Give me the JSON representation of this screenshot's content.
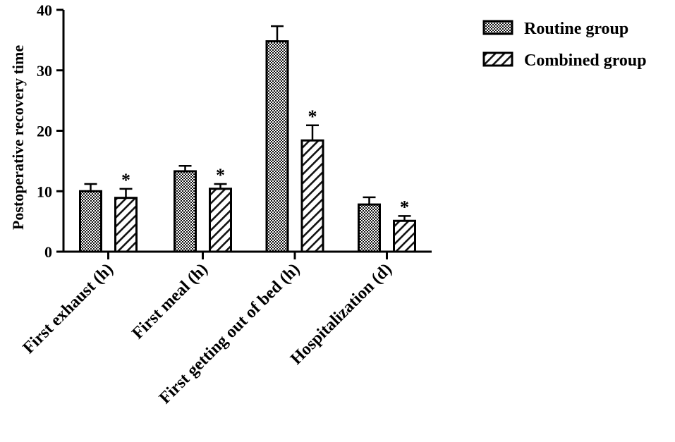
{
  "chart_data": {
    "type": "bar",
    "title": "",
    "xlabel": "",
    "ylabel": "Postoperative recovery time",
    "ylim": [
      0,
      40
    ],
    "yticks": [
      0,
      10,
      20,
      30,
      40
    ],
    "grid": false,
    "legend_position": "top-right",
    "categories": [
      "First exhaust (h)",
      "First meal (h)",
      "First getting out of bed (h)",
      "Hospitalization (d)"
    ],
    "series": [
      {
        "name": "Routine group",
        "pattern": "checkered",
        "values": [
          10.0,
          13.3,
          34.8,
          7.8
        ],
        "error": [
          1.2,
          0.9,
          2.5,
          1.2
        ],
        "annotations": [
          "",
          "",
          "",
          ""
        ]
      },
      {
        "name": "Combined group",
        "pattern": "hatched",
        "values": [
          8.9,
          10.4,
          18.4,
          5.1
        ],
        "error": [
          1.5,
          0.8,
          2.5,
          0.8
        ],
        "annotations": [
          "*",
          "*",
          "*",
          "*"
        ]
      }
    ],
    "colors": {
      "bar_stroke": "#000000",
      "pattern_dark": "#111111",
      "pattern_light": "#ffffff"
    }
  }
}
